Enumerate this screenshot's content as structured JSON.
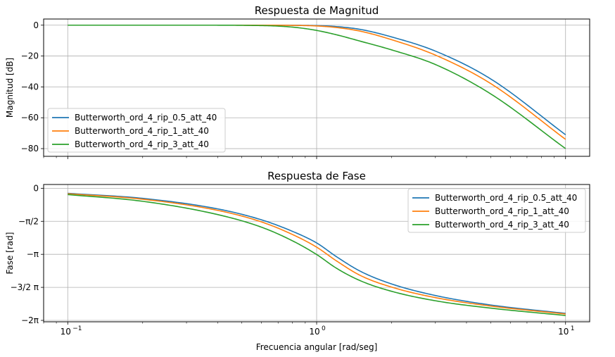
{
  "chart_data": [
    {
      "type": "line",
      "title": "Respuesta de Magnitud",
      "xlabel": "",
      "ylabel": "Magnitud [dB]",
      "xscale": "log",
      "xlim": [
        0.08,
        12.5
      ],
      "ylim": [
        -85,
        4
      ],
      "yticks": [
        0,
        -20,
        -40,
        -60,
        -80
      ],
      "ytick_labels": [
        "0",
        "−20",
        "−40",
        "−60",
        "−80"
      ],
      "grid": true,
      "legend_position": "lower-left",
      "series": [
        {
          "name": "Butterworth_ord_4_rip_0.5_att_40",
          "color": "#1f77b4",
          "x": [
            0.1,
            0.3,
            0.6,
            0.8,
            1.0,
            1.2,
            1.5,
            2.0,
            3.0,
            5.0,
            10.0
          ],
          "y": [
            0,
            0,
            -0.01,
            -0.06,
            -0.27,
            -0.9,
            -2.75,
            -7.6,
            -16.8,
            -34.8,
            -71.0
          ]
        },
        {
          "name": "Butterworth_ord_4_rip_1_att_40",
          "color": "#ff7f0e",
          "x": [
            0.1,
            0.3,
            0.6,
            0.8,
            1.0,
            1.2,
            1.5,
            2.0,
            3.0,
            5.0,
            10.0
          ],
          "y": [
            0,
            0,
            -0.02,
            -0.13,
            -0.5,
            -1.5,
            -3.9,
            -9.4,
            -19.4,
            -37.8,
            -74.0
          ]
        },
        {
          "name": "Butterworth_ord_4_rip_3_att_40",
          "color": "#2ca02c",
          "x": [
            0.1,
            0.3,
            0.5,
            0.7,
            0.85,
            1.0,
            1.2,
            1.5,
            2.0,
            3.0,
            5.0,
            10.0
          ],
          "y": [
            0,
            0,
            -0.1,
            -0.6,
            -1.7,
            -3.4,
            -6.2,
            -10.4,
            -16.0,
            -25.5,
            -44.5,
            -80.0
          ]
        }
      ]
    },
    {
      "type": "line",
      "title": "Respuesta de Fase",
      "xlabel": "Frecuencia angular [rad/seg]",
      "ylabel": "Fase [rad]",
      "xscale": "log",
      "xlim": [
        0.08,
        12.5
      ],
      "ylim": [
        -6.35,
        0.18
      ],
      "yticks": [
        0,
        -1.5708,
        -3.1416,
        -4.7124,
        -6.2832
      ],
      "ytick_labels": [
        "0",
        "−π/2",
        "−π",
        "−3/2 π",
        "−2π"
      ],
      "xticks": [
        0.1,
        1,
        10
      ],
      "xtick_labels": [
        "10",
        "10",
        "10"
      ],
      "xtick_exponents": [
        "−1",
        "0",
        "1"
      ],
      "grid": true,
      "legend_position": "upper-right",
      "series": [
        {
          "name": "Butterworth_ord_4_rip_0.5_att_40",
          "color": "#1f77b4",
          "x": [
            0.1,
            0.2,
            0.4,
            0.6,
            0.8,
            1.0,
            1.2,
            1.5,
            2.0,
            3.0,
            5.0,
            10.0
          ],
          "y": [
            -0.24,
            -0.48,
            -0.98,
            -1.5,
            -2.05,
            -2.6,
            -3.25,
            -3.95,
            -4.55,
            -5.1,
            -5.55,
            -5.95
          ]
        },
        {
          "name": "Butterworth_ord_4_rip_1_att_40",
          "color": "#ff7f0e",
          "x": [
            0.1,
            0.2,
            0.4,
            0.6,
            0.8,
            1.0,
            1.2,
            1.5,
            2.0,
            3.0,
            5.0,
            10.0
          ],
          "y": [
            -0.26,
            -0.52,
            -1.05,
            -1.6,
            -2.2,
            -2.8,
            -3.45,
            -4.15,
            -4.7,
            -5.2,
            -5.6,
            -5.98
          ]
        },
        {
          "name": "Butterworth_ord_4_rip_3_att_40",
          "color": "#2ca02c",
          "x": [
            0.1,
            0.2,
            0.4,
            0.6,
            0.8,
            1.0,
            1.2,
            1.5,
            2.0,
            3.0,
            5.0,
            10.0
          ],
          "y": [
            -0.3,
            -0.62,
            -1.25,
            -1.85,
            -2.5,
            -3.15,
            -3.8,
            -4.4,
            -4.9,
            -5.35,
            -5.7,
            -6.05
          ]
        }
      ]
    }
  ]
}
